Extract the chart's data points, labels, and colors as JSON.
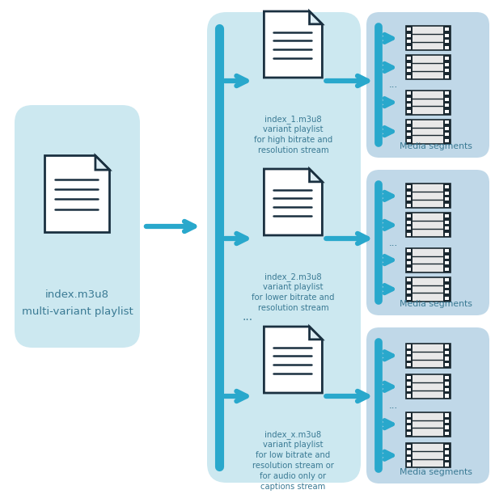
{
  "bg_color": "#ffffff",
  "light_blue_box": "#cce8f0",
  "medium_blue_box": "#c0d8e8",
  "arrow_color": "#29a8cc",
  "text_color": "#3a7a94",
  "doc_border": "#1a3040",
  "film_border": "#1a2830",
  "main_label1": "index.m3u8",
  "main_label2": "multi-variant playlist",
  "variant_labels": [
    [
      "index_1.m3u8",
      "variant playlist",
      "for high bitrate and",
      "resolution stream"
    ],
    [
      "index_2.m3u8",
      "variant playlist",
      "for lower bitrate and",
      "resolution stream"
    ],
    [
      "index_x.m3u8",
      "variant playlist",
      "for low bitrate and",
      "resolution stream or",
      "for audio only or",
      "captions stream"
    ]
  ],
  "media_label": "Media segments",
  "dots": "...",
  "figsize": [
    6.12,
    6.11
  ],
  "dpi": 100
}
